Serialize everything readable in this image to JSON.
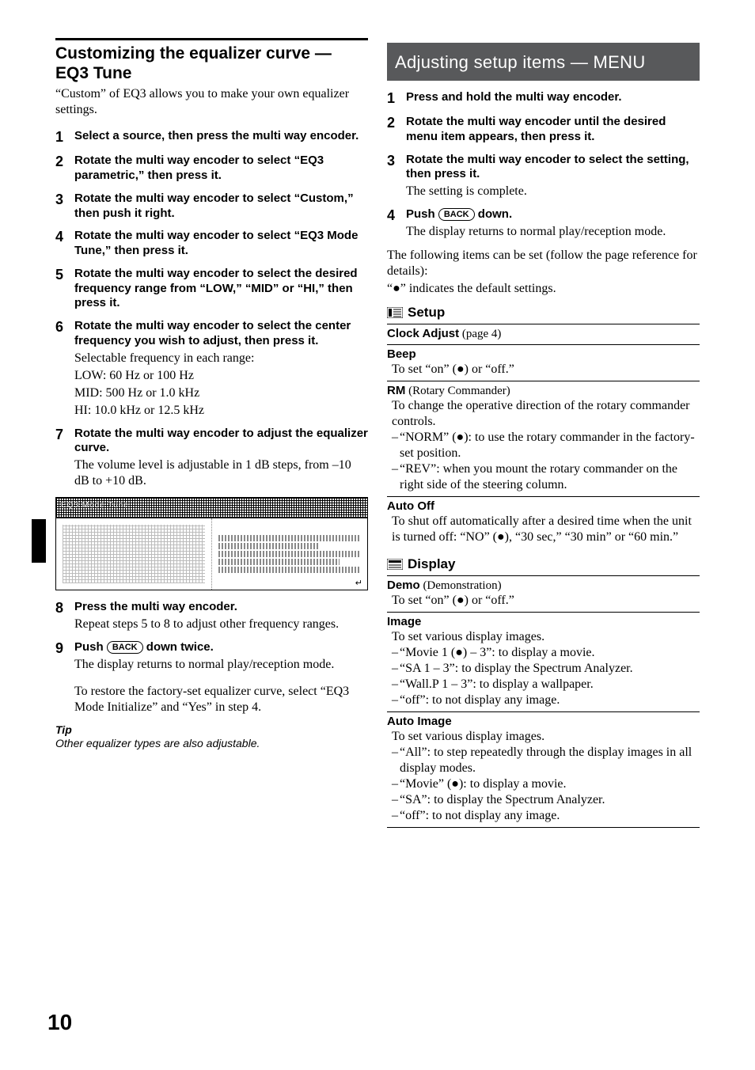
{
  "pageNumber": "10",
  "left": {
    "title": "Customizing the equalizer curve — EQ3 Tune",
    "intro": "“Custom” of EQ3 allows you to make your own equalizer settings.",
    "steps": [
      {
        "n": "1",
        "bold": "Select a source, then press the multi way encoder."
      },
      {
        "n": "2",
        "bold": "Rotate the multi way encoder to select “EQ3 parametric,” then press it."
      },
      {
        "n": "3",
        "bold": "Rotate the multi way encoder to select “Custom,” then push it right."
      },
      {
        "n": "4",
        "bold": "Rotate the multi way encoder to select “EQ3 Mode Tune,” then press it."
      },
      {
        "n": "5",
        "bold": "Rotate the multi way encoder to select the desired frequency range from “LOW,” “MID” or “HI,” then press it."
      },
      {
        "n": "6",
        "bold": "Rotate the multi way encoder to select the center frequency you wish to adjust, then press it.",
        "lines": [
          "Selectable frequency in each range:",
          "LOW: 60 Hz or 100 Hz",
          "MID: 500 Hz or 1.0 kHz",
          "HI: 10.0 kHz or 12.5 kHz"
        ]
      },
      {
        "n": "7",
        "bold": "Rotate the multi way encoder to adjust the equalizer curve.",
        "lines": [
          "The volume level is adjustable in 1 dB steps, from –10 dB to +10 dB."
        ]
      },
      {
        "n": "8",
        "bold": "Press the multi way encoder.",
        "lines": [
          "Repeat steps 5 to 8 to adjust other frequency ranges."
        ]
      },
      {
        "n": "9",
        "bold_pre": "Push ",
        "key": "BACK",
        "bold_post": " down twice.",
        "lines": [
          "The display returns to normal play/reception mode.",
          "",
          "To restore the factory-set equalizer curve, select “EQ3 Mode Initialize” and “Yes” in step 4."
        ]
      }
    ],
    "imageLabel": "EQ3 Mode Tune",
    "tipLabel": "Tip",
    "tipText": "Other equalizer types are also adjustable."
  },
  "right": {
    "banner": "Adjusting setup items — MENU",
    "steps": [
      {
        "n": "1",
        "bold": "Press and hold the multi way encoder."
      },
      {
        "n": "2",
        "bold": "Rotate the multi way encoder until the desired menu item appears, then press it."
      },
      {
        "n": "3",
        "bold": "Rotate the multi way encoder to select the setting, then press it.",
        "lines": [
          "The setting is complete."
        ]
      },
      {
        "n": "4",
        "bold_pre": "Push ",
        "key": "BACK",
        "bold_post": " down.",
        "lines": [
          "The display returns to normal play/reception mode."
        ]
      }
    ],
    "after": "The following items can be set (follow the page reference for details):",
    "defaultNote": "“●” indicates the default settings.",
    "setup": {
      "label": "Setup",
      "items": [
        {
          "title": "Clock Adjust",
          "page": " (page 4)"
        },
        {
          "title": "Beep",
          "body": "To set “on” (●) or “off.”"
        },
        {
          "title": "RM",
          "page": " (Rotary Commander)",
          "body": "To change the operative direction of the rotary commander controls.",
          "list": [
            "“NORM” (●): to use the rotary commander in the factory-set position.",
            "“REV”: when you mount the rotary commander on the right side of the steering column."
          ]
        },
        {
          "title": "Auto Off",
          "body": "To shut off automatically after a desired time when the unit is turned off: “NO” (●), “30 sec,” “30 min” or “60 min.”"
        }
      ]
    },
    "display": {
      "label": "Display",
      "items": [
        {
          "title": "Demo",
          "page": " (Demonstration)",
          "body": "To set “on” (●) or “off.”"
        },
        {
          "title": "Image",
          "body": "To set various display images.",
          "list": [
            "“Movie 1 (●) – 3”: to display a movie.",
            "“SA 1 – 3”: to display the Spectrum Analyzer.",
            "“Wall.P 1 – 3”: to display a wallpaper.",
            "“off”: to not display any image."
          ]
        },
        {
          "title": "Auto Image",
          "body": "To set various display images.",
          "list": [
            "“All”: to step repeatedly through the display images in all display modes.",
            "“Movie” (●): to display a movie.",
            "“SA”: to display the Spectrum Analyzer.",
            "“off”: to not display any image."
          ]
        }
      ]
    }
  }
}
